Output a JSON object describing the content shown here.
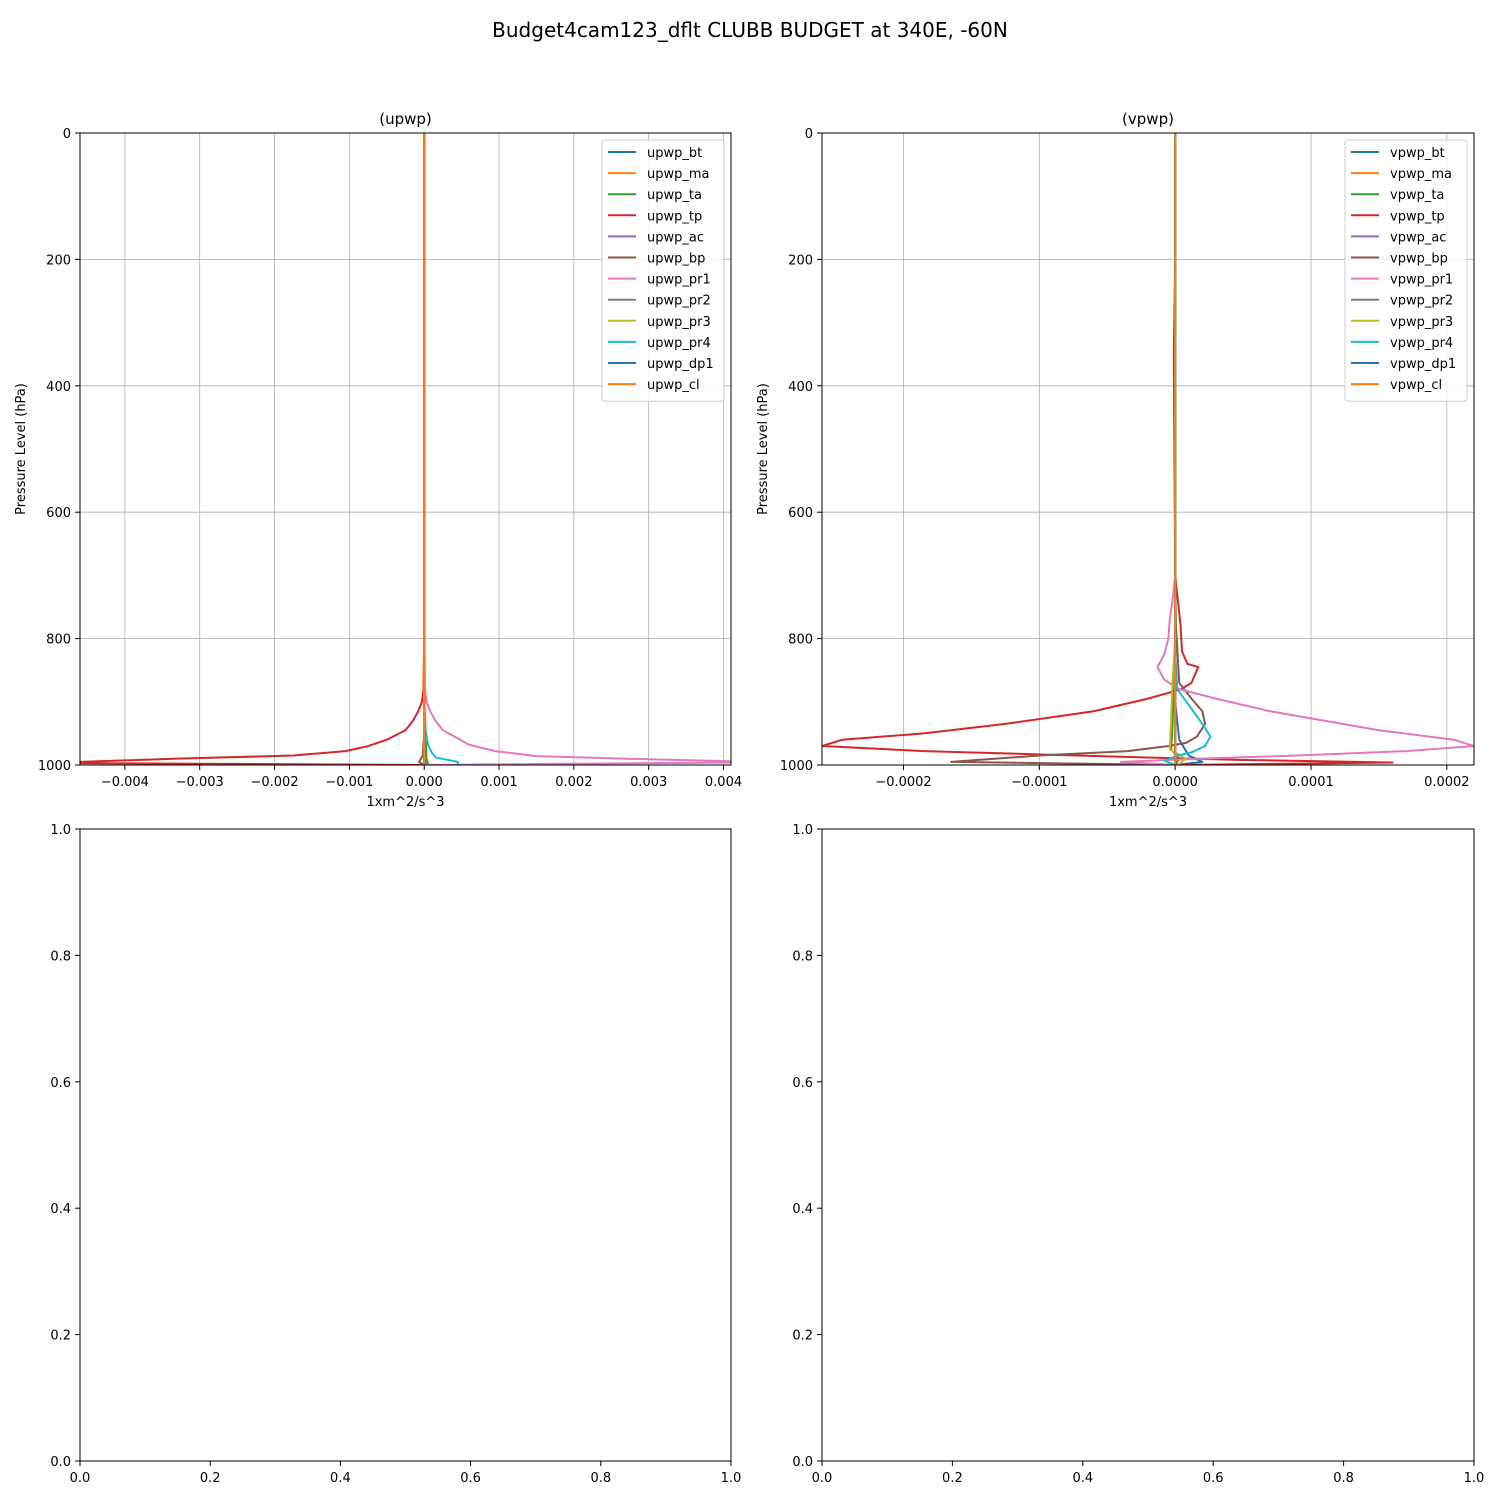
{
  "figure": {
    "title": "Budget4cam123_dflt CLUBB BUDGET at 340E, -60N"
  },
  "chart_data": [
    {
      "type": "line",
      "title": "(upwp)",
      "xlabel": "1xm^2/s^3",
      "ylabel": "Pressure Level (hPa)",
      "xlim": [
        -0.0046,
        0.0041
      ],
      "ylim": [
        1000,
        0
      ],
      "xticks": [
        -0.004,
        -0.003,
        -0.002,
        -0.001,
        0.0,
        0.001,
        0.002,
        0.003,
        0.004
      ],
      "xtick_labels": [
        "−0.004",
        "−0.003",
        "−0.002",
        "−0.001",
        "0.000",
        "0.001",
        "0.002",
        "0.003",
        "0.004"
      ],
      "yticks": [
        0,
        200,
        400,
        600,
        800,
        1000
      ],
      "ytick_labels": [
        "0",
        "200",
        "400",
        "600",
        "800",
        "1000"
      ],
      "grid": true,
      "legend": "top-right",
      "series": [
        {
          "name": "upwp_bt",
          "color": "#1f77b4",
          "points": [
            [
              0,
              0
            ],
            [
              0,
              900
            ],
            [
              0,
              990
            ],
            [
              2e-05,
              997
            ],
            [
              0,
              1000
            ]
          ]
        },
        {
          "name": "upwp_ma",
          "color": "#ff7f0e",
          "points": [
            [
              0,
              0
            ],
            [
              0,
              900
            ],
            [
              0,
              1000
            ]
          ]
        },
        {
          "name": "upwp_ta",
          "color": "#2ca02c",
          "points": [
            [
              0,
              0
            ],
            [
              0,
              900
            ],
            [
              3e-05,
              990
            ],
            [
              5e-05,
              997
            ],
            [
              0,
              1000
            ]
          ]
        },
        {
          "name": "upwp_tp",
          "color": "#d62728",
          "points": [
            [
              0,
              0
            ],
            [
              0,
              800
            ],
            [
              -1e-05,
              880
            ],
            [
              -3e-05,
              900
            ],
            [
              -8e-05,
              915
            ],
            [
              -0.00015,
              930
            ],
            [
              -0.00025,
              945
            ],
            [
              -0.0005,
              960
            ],
            [
              -0.00075,
              970
            ],
            [
              -0.00105,
              978
            ],
            [
              -0.00175,
              985
            ],
            [
              -0.0033,
              990
            ],
            [
              -0.0046,
              995
            ],
            [
              -0.0046,
              997
            ],
            [
              5e-05,
              1000
            ]
          ]
        },
        {
          "name": "upwp_ac",
          "color": "#9467bd",
          "points": [
            [
              0,
              0
            ],
            [
              0,
              1000
            ]
          ]
        },
        {
          "name": "upwp_bp",
          "color": "#8c564b",
          "points": [
            [
              0,
              0
            ],
            [
              0,
              950
            ],
            [
              -2e-05,
              985
            ],
            [
              -7e-05,
              995
            ],
            [
              0,
              1000
            ]
          ]
        },
        {
          "name": "upwp_pr1",
          "color": "#e377c2",
          "points": [
            [
              0,
              0
            ],
            [
              0,
              800
            ],
            [
              1e-05,
              880
            ],
            [
              3e-05,
              900
            ],
            [
              8e-05,
              915
            ],
            [
              0.00015,
              930
            ],
            [
              0.00025,
              945
            ],
            [
              0.00045,
              958
            ],
            [
              0.0006,
              968
            ],
            [
              0.00095,
              978
            ],
            [
              0.0015,
              986
            ],
            [
              0.003,
              991
            ],
            [
              0.0041,
              994
            ],
            [
              0.0041,
              996
            ],
            [
              0,
              1000
            ]
          ]
        },
        {
          "name": "upwp_pr2",
          "color": "#7f7f7f",
          "points": [
            [
              0,
              0
            ],
            [
              0,
              1000
            ]
          ]
        },
        {
          "name": "upwp_pr3",
          "color": "#bcbd22",
          "points": [
            [
              0,
              0
            ],
            [
              0,
              1000
            ]
          ]
        },
        {
          "name": "upwp_pr4",
          "color": "#17becf",
          "points": [
            [
              0,
              0
            ],
            [
              0,
              900
            ],
            [
              2e-05,
              945
            ],
            [
              5e-05,
              968
            ],
            [
              0.0001,
              980
            ],
            [
              0.00015,
              988
            ],
            [
              0.00045,
              995
            ],
            [
              0.00045,
              1000
            ]
          ]
        },
        {
          "name": "upwp_dp1",
          "color": "#1f77b4",
          "points": [
            [
              0,
              0
            ],
            [
              0,
              1000
            ]
          ]
        },
        {
          "name": "upwp_cl",
          "color": "#ff7f0e",
          "points": [
            [
              0,
              0
            ],
            [
              0,
              1000
            ]
          ]
        }
      ]
    },
    {
      "type": "line",
      "title": "(vpwp)",
      "xlabel": "1xm^2/s^3",
      "ylabel": "Pressure Level (hPa)",
      "xlim": [
        -0.00026,
        0.00022
      ],
      "ylim": [
        1000,
        0
      ],
      "xticks": [
        -0.0002,
        -0.0001,
        0.0,
        0.0001,
        0.0002
      ],
      "xtick_labels": [
        "−0.0002",
        "−0.0001",
        "0.0000",
        "0.0001",
        "0.0002"
      ],
      "yticks": [
        0,
        200,
        400,
        600,
        800,
        1000
      ],
      "ytick_labels": [
        "0",
        "200",
        "400",
        "600",
        "800",
        "1000"
      ],
      "grid": true,
      "legend": "top-right",
      "series": [
        {
          "name": "vpwp_bt",
          "color": "#1f77b4",
          "points": [
            [
              0,
              0
            ],
            [
              0,
              900
            ],
            [
              3e-06,
              960
            ],
            [
              1e-05,
              985
            ],
            [
              2e-05,
              995
            ],
            [
              0,
              1000
            ]
          ]
        },
        {
          "name": "vpwp_ma",
          "color": "#ff7f0e",
          "points": [
            [
              0,
              0
            ],
            [
              0,
              1000
            ]
          ]
        },
        {
          "name": "vpwp_ta",
          "color": "#2ca02c",
          "points": [
            [
              0,
              0
            ],
            [
              0,
              800
            ],
            [
              -1e-06,
              870
            ],
            [
              -2e-06,
              940
            ],
            [
              -3e-06,
              975
            ],
            [
              3e-06,
              990
            ],
            [
              0,
              1000
            ]
          ]
        },
        {
          "name": "vpwp_tp",
          "color": "#d62728",
          "points": [
            [
              0,
              0
            ],
            [
              0,
              200
            ],
            [
              -1e-06,
              350
            ],
            [
              0,
              700
            ],
            [
              4e-06,
              780
            ],
            [
              5e-06,
              820
            ],
            [
              9e-06,
              840
            ],
            [
              1.7e-05,
              845
            ],
            [
              1.2e-05,
              870
            ],
            [
              4.5e-06,
              880
            ],
            [
              -2e-05,
              895
            ],
            [
              -6e-05,
              915
            ],
            [
              -0.000125,
              935
            ],
            [
              -0.000185,
              950
            ],
            [
              -0.000245,
              960
            ],
            [
              -0.00026,
              970
            ],
            [
              -0.000185,
              978
            ],
            [
              -4e-05,
              987
            ],
            [
              5e-05,
              992
            ],
            [
              0.00016,
              996
            ],
            [
              1e-07,
              1000
            ]
          ]
        },
        {
          "name": "vpwp_ac",
          "color": "#9467bd",
          "points": [
            [
              0,
              0
            ],
            [
              0,
              1000
            ]
          ]
        },
        {
          "name": "vpwp_bp",
          "color": "#8c564b",
          "points": [
            [
              0,
              0
            ],
            [
              0,
              700
            ],
            [
              6e-07,
              780
            ],
            [
              3e-06,
              870
            ],
            [
              1.2e-05,
              895
            ],
            [
              2e-05,
              915
            ],
            [
              2.2e-05,
              935
            ],
            [
              1.6e-05,
              955
            ],
            [
              8e-06,
              965
            ],
            [
              -5e-06,
              970
            ],
            [
              -3.5e-05,
              978
            ],
            [
              -0.0001,
              985
            ],
            [
              -0.000165,
              995
            ],
            [
              0,
              1000
            ]
          ]
        },
        {
          "name": "vpwp_pr1",
          "color": "#e377c2",
          "points": [
            [
              0,
              0
            ],
            [
              0,
              700
            ],
            [
              -2e-06,
              740
            ],
            [
              -4e-06,
              770
            ],
            [
              -5e-06,
              800
            ],
            [
              -8e-06,
              825
            ],
            [
              -1.3e-05,
              845
            ],
            [
              -8e-06,
              865
            ],
            [
              3e-06,
              880
            ],
            [
              3e-05,
              895
            ],
            [
              7e-05,
              915
            ],
            [
              0.00011,
              930
            ],
            [
              0.00015,
              945
            ],
            [
              0.000205,
              960
            ],
            [
              0.00022,
              970
            ],
            [
              0.00017,
              978
            ],
            [
              9e-05,
              985
            ],
            [
              2e-05,
              990
            ],
            [
              -4e-05,
              995
            ],
            [
              0,
              1000
            ]
          ]
        },
        {
          "name": "vpwp_pr2",
          "color": "#7f7f7f",
          "points": [
            [
              0,
              0
            ],
            [
              0,
              1000
            ]
          ]
        },
        {
          "name": "vpwp_pr3",
          "color": "#bcbd22",
          "points": [
            [
              0,
              0
            ],
            [
              0,
              800
            ],
            [
              -2e-06,
              870
            ],
            [
              -3e-06,
              930
            ],
            [
              -4e-06,
              975
            ],
            [
              8e-06,
              990
            ],
            [
              2e-06,
              1000
            ]
          ]
        },
        {
          "name": "vpwp_pr4",
          "color": "#17becf",
          "points": [
            [
              0,
              0
            ],
            [
              0,
              820
            ],
            [
              1.5e-06,
              880
            ],
            [
              1e-05,
              905
            ],
            [
              2e-05,
              935
            ],
            [
              2.6e-05,
              955
            ],
            [
              2.2e-05,
              970
            ],
            [
              1.2e-05,
              980
            ],
            [
              2e-06,
              985
            ],
            [
              -8e-06,
              993
            ],
            [
              0,
              1000
            ]
          ]
        },
        {
          "name": "vpwp_dp1",
          "color": "#1f77b4",
          "points": [
            [
              0,
              0
            ],
            [
              0,
              1000
            ]
          ]
        },
        {
          "name": "vpwp_cl",
          "color": "#ff7f0e",
          "points": [
            [
              0,
              0
            ],
            [
              0,
              1000
            ]
          ]
        }
      ]
    },
    {
      "type": "line",
      "title": "",
      "xlim": [
        0.0,
        1.0
      ],
      "ylim": [
        0.0,
        1.0
      ],
      "xticks": [
        0.0,
        0.2,
        0.4,
        0.6,
        0.8,
        1.0
      ],
      "xtick_labels": [
        "0.0",
        "0.2",
        "0.4",
        "0.6",
        "0.8",
        "1.0"
      ],
      "yticks": [
        0.0,
        0.2,
        0.4,
        0.6,
        0.8,
        1.0
      ],
      "ytick_labels": [
        "0.0",
        "0.2",
        "0.4",
        "0.6",
        "0.8",
        "1.0"
      ],
      "grid": false,
      "series": []
    },
    {
      "type": "line",
      "title": "",
      "xlim": [
        0.0,
        1.0
      ],
      "ylim": [
        0.0,
        1.0
      ],
      "xticks": [
        0.0,
        0.2,
        0.4,
        0.6,
        0.8,
        1.0
      ],
      "xtick_labels": [
        "0.0",
        "0.2",
        "0.4",
        "0.6",
        "0.8",
        "1.0"
      ],
      "yticks": [
        0.0,
        0.2,
        0.4,
        0.6,
        0.8,
        1.0
      ],
      "ytick_labels": [
        "0.0",
        "0.2",
        "0.4",
        "0.6",
        "0.8",
        "1.0"
      ],
      "grid": false,
      "series": []
    }
  ]
}
